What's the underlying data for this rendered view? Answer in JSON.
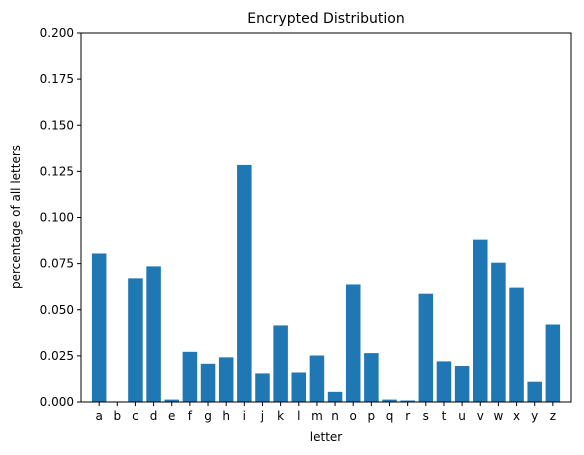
{
  "chart_data": {
    "type": "bar",
    "title": "Encrypted Distribution",
    "xlabel": "letter",
    "ylabel": "percentage of all letters",
    "ylim": [
      0,
      0.2
    ],
    "yticks": [
      "0.000",
      "0.025",
      "0.050",
      "0.075",
      "0.100",
      "0.125",
      "0.150",
      "0.175",
      "0.200"
    ],
    "ytick_values": [
      0,
      0.025,
      0.05,
      0.075,
      0.1,
      0.125,
      0.15,
      0.175,
      0.2
    ],
    "grid": false,
    "bar_color": "#1f77b4",
    "categories": [
      "a",
      "b",
      "c",
      "d",
      "e",
      "f",
      "g",
      "h",
      "i",
      "j",
      "k",
      "l",
      "m",
      "n",
      "o",
      "p",
      "q",
      "r",
      "s",
      "t",
      "u",
      "v",
      "w",
      "x",
      "y",
      "z"
    ],
    "values": [
      0.0805,
      0.0003,
      0.067,
      0.0735,
      0.0013,
      0.0272,
      0.0207,
      0.0242,
      0.1285,
      0.0155,
      0.0415,
      0.016,
      0.0252,
      0.0055,
      0.0637,
      0.0265,
      0.0013,
      0.0008,
      0.0587,
      0.022,
      0.0195,
      0.088,
      0.0755,
      0.062,
      0.011,
      0.042
    ]
  }
}
